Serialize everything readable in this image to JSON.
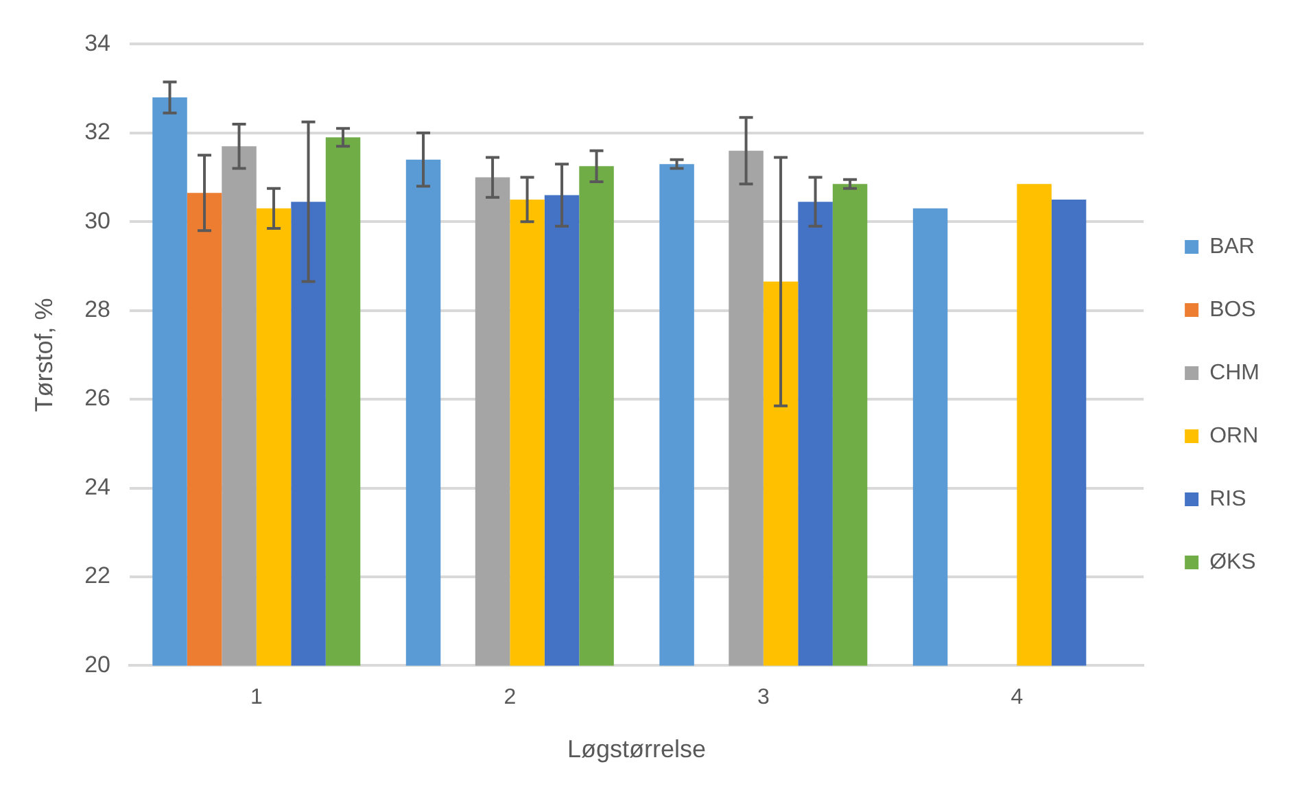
{
  "chart_data": {
    "type": "bar",
    "xlabel": "Løgstørrelse",
    "ylabel": "Tørstof, %",
    "categories": [
      "1",
      "2",
      "3",
      "4"
    ],
    "series": [
      {
        "name": "BAR",
        "color": "#5b9bd5",
        "values": [
          32.8,
          31.4,
          31.3,
          30.3
        ],
        "errors": [
          0.35,
          0.6,
          0.1,
          null
        ]
      },
      {
        "name": "BOS",
        "color": "#ed7d31",
        "values": [
          30.65,
          null,
          null,
          null
        ],
        "errors": [
          0.85,
          null,
          null,
          null
        ]
      },
      {
        "name": "CHM",
        "color": "#a5a5a5",
        "values": [
          31.7,
          31.0,
          31.6,
          null
        ],
        "errors": [
          0.5,
          0.45,
          0.75,
          null
        ]
      },
      {
        "name": "ORN",
        "color": "#ffc000",
        "values": [
          30.3,
          30.5,
          28.65,
          30.85
        ],
        "errors": [
          0.45,
          0.5,
          2.8,
          null
        ]
      },
      {
        "name": "RIS",
        "color": "#4472c4",
        "values": [
          30.45,
          30.6,
          30.45,
          30.5
        ],
        "errors": [
          1.8,
          0.7,
          0.55,
          null
        ]
      },
      {
        "name": "ØKS",
        "color": "#70ad47",
        "values": [
          31.9,
          31.25,
          30.85,
          null
        ],
        "errors": [
          0.2,
          0.35,
          0.1,
          null
        ]
      }
    ],
    "ylim": [
      20,
      34
    ],
    "yticks": [
      20,
      22,
      24,
      26,
      28,
      30,
      32,
      34
    ],
    "grid": "y",
    "legend": "right"
  }
}
